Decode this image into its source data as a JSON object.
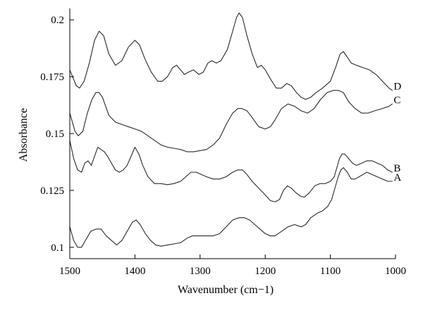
{
  "chart_data": {
    "type": "line",
    "title": "",
    "xlabel": "Wavenumber (cm−1)",
    "ylabel": "Absorbance",
    "xlim": [
      1500,
      1000
    ],
    "ylim": [
      0.095,
      0.205
    ],
    "x_reversed": true,
    "grid": false,
    "x_ticks": [
      1500,
      1400,
      1300,
      1200,
      1100,
      1000
    ],
    "x_tick_labels": [
      "1500",
      "1400",
      "1300",
      "1200",
      "1100",
      "1000"
    ],
    "y_ticks": [
      0.1,
      0.125,
      0.15,
      0.175,
      0.2
    ],
    "y_tick_labels": [
      "0.1",
      "0.125",
      "0.15",
      "0.175",
      "0.2"
    ],
    "line_color": "#2a2a2a",
    "series": [
      {
        "name": "D",
        "points": [
          [
            1500,
            0.178
          ],
          [
            1490,
            0.171
          ],
          [
            1485,
            0.17
          ],
          [
            1478,
            0.173
          ],
          [
            1470,
            0.181
          ],
          [
            1462,
            0.191
          ],
          [
            1455,
            0.195
          ],
          [
            1448,
            0.193
          ],
          [
            1440,
            0.185
          ],
          [
            1430,
            0.18
          ],
          [
            1420,
            0.182
          ],
          [
            1410,
            0.188
          ],
          [
            1400,
            0.191
          ],
          [
            1393,
            0.189
          ],
          [
            1385,
            0.183
          ],
          [
            1375,
            0.177
          ],
          [
            1365,
            0.173
          ],
          [
            1358,
            0.173
          ],
          [
            1350,
            0.175
          ],
          [
            1342,
            0.179
          ],
          [
            1336,
            0.18
          ],
          [
            1330,
            0.178
          ],
          [
            1324,
            0.176
          ],
          [
            1318,
            0.177
          ],
          [
            1310,
            0.178
          ],
          [
            1302,
            0.176
          ],
          [
            1295,
            0.177
          ],
          [
            1288,
            0.181
          ],
          [
            1282,
            0.182
          ],
          [
            1275,
            0.181
          ],
          [
            1268,
            0.182
          ],
          [
            1258,
            0.187
          ],
          [
            1250,
            0.195
          ],
          [
            1244,
            0.201
          ],
          [
            1240,
            0.203
          ],
          [
            1235,
            0.201
          ],
          [
            1228,
            0.193
          ],
          [
            1220,
            0.185
          ],
          [
            1212,
            0.179
          ],
          [
            1206,
            0.18
          ],
          [
            1200,
            0.178
          ],
          [
            1192,
            0.174
          ],
          [
            1183,
            0.17
          ],
          [
            1175,
            0.17
          ],
          [
            1167,
            0.172
          ],
          [
            1160,
            0.171
          ],
          [
            1152,
            0.168
          ],
          [
            1145,
            0.166
          ],
          [
            1138,
            0.165
          ],
          [
            1130,
            0.166
          ],
          [
            1122,
            0.168
          ],
          [
            1112,
            0.17
          ],
          [
            1100,
            0.173
          ],
          [
            1092,
            0.179
          ],
          [
            1085,
            0.185
          ],
          [
            1080,
            0.186
          ],
          [
            1075,
            0.184
          ],
          [
            1068,
            0.181
          ],
          [
            1060,
            0.18
          ],
          [
            1050,
            0.179
          ],
          [
            1040,
            0.178
          ],
          [
            1030,
            0.176
          ],
          [
            1020,
            0.173
          ],
          [
            1010,
            0.17
          ],
          [
            1005,
            0.169
          ]
        ]
      },
      {
        "name": "C",
        "points": [
          [
            1500,
            0.159
          ],
          [
            1492,
            0.151
          ],
          [
            1487,
            0.149
          ],
          [
            1480,
            0.151
          ],
          [
            1473,
            0.159
          ],
          [
            1466,
            0.165
          ],
          [
            1460,
            0.168
          ],
          [
            1455,
            0.168
          ],
          [
            1450,
            0.166
          ],
          [
            1440,
            0.158
          ],
          [
            1430,
            0.155
          ],
          [
            1420,
            0.154
          ],
          [
            1410,
            0.153
          ],
          [
            1400,
            0.152
          ],
          [
            1390,
            0.151
          ],
          [
            1380,
            0.149
          ],
          [
            1370,
            0.147
          ],
          [
            1360,
            0.145
          ],
          [
            1350,
            0.144
          ],
          [
            1340,
            0.1435
          ],
          [
            1330,
            0.143
          ],
          [
            1320,
            0.142
          ],
          [
            1310,
            0.142
          ],
          [
            1300,
            0.1425
          ],
          [
            1290,
            0.143
          ],
          [
            1280,
            0.145
          ],
          [
            1270,
            0.148
          ],
          [
            1260,
            0.154
          ],
          [
            1250,
            0.159
          ],
          [
            1242,
            0.161
          ],
          [
            1236,
            0.161
          ],
          [
            1228,
            0.16
          ],
          [
            1220,
            0.157
          ],
          [
            1210,
            0.153
          ],
          [
            1200,
            0.152
          ],
          [
            1192,
            0.153
          ],
          [
            1185,
            0.156
          ],
          [
            1175,
            0.161
          ],
          [
            1165,
            0.163
          ],
          [
            1155,
            0.162
          ],
          [
            1145,
            0.16
          ],
          [
            1135,
            0.159
          ],
          [
            1125,
            0.161
          ],
          [
            1115,
            0.165
          ],
          [
            1105,
            0.168
          ],
          [
            1095,
            0.169
          ],
          [
            1088,
            0.169
          ],
          [
            1080,
            0.168
          ],
          [
            1072,
            0.164
          ],
          [
            1062,
            0.161
          ],
          [
            1052,
            0.159
          ],
          [
            1042,
            0.159
          ],
          [
            1032,
            0.16
          ],
          [
            1020,
            0.161
          ],
          [
            1010,
            0.162
          ],
          [
            1005,
            0.163
          ]
        ]
      },
      {
        "name": "B",
        "points": [
          [
            1500,
            0.147
          ],
          [
            1494,
            0.139
          ],
          [
            1488,
            0.134
          ],
          [
            1482,
            0.133
          ],
          [
            1477,
            0.137
          ],
          [
            1472,
            0.138
          ],
          [
            1467,
            0.136
          ],
          [
            1462,
            0.14
          ],
          [
            1457,
            0.144
          ],
          [
            1452,
            0.143
          ],
          [
            1447,
            0.142
          ],
          [
            1442,
            0.14
          ],
          [
            1436,
            0.137
          ],
          [
            1430,
            0.134
          ],
          [
            1424,
            0.133
          ],
          [
            1418,
            0.134
          ],
          [
            1412,
            0.136
          ],
          [
            1406,
            0.14
          ],
          [
            1400,
            0.144
          ],
          [
            1394,
            0.141
          ],
          [
            1388,
            0.136
          ],
          [
            1380,
            0.131
          ],
          [
            1370,
            0.128
          ],
          [
            1360,
            0.128
          ],
          [
            1350,
            0.1275
          ],
          [
            1340,
            0.128
          ],
          [
            1330,
            0.129
          ],
          [
            1322,
            0.131
          ],
          [
            1314,
            0.133
          ],
          [
            1306,
            0.133
          ],
          [
            1298,
            0.132
          ],
          [
            1290,
            0.131
          ],
          [
            1280,
            0.13
          ],
          [
            1270,
            0.13
          ],
          [
            1260,
            0.131
          ],
          [
            1250,
            0.133
          ],
          [
            1242,
            0.134
          ],
          [
            1235,
            0.134
          ],
          [
            1228,
            0.132
          ],
          [
            1220,
            0.129
          ],
          [
            1210,
            0.126
          ],
          [
            1200,
            0.123
          ],
          [
            1192,
            0.1205
          ],
          [
            1185,
            0.12
          ],
          [
            1178,
            0.121
          ],
          [
            1172,
            0.125
          ],
          [
            1166,
            0.127
          ],
          [
            1160,
            0.126
          ],
          [
            1153,
            0.124
          ],
          [
            1146,
            0.1225
          ],
          [
            1140,
            0.122
          ],
          [
            1132,
            0.124
          ],
          [
            1124,
            0.127
          ],
          [
            1116,
            0.128
          ],
          [
            1108,
            0.128
          ],
          [
            1100,
            0.129
          ],
          [
            1094,
            0.131
          ],
          [
            1090,
            0.135
          ],
          [
            1086,
            0.139
          ],
          [
            1082,
            0.141
          ],
          [
            1078,
            0.141
          ],
          [
            1072,
            0.139
          ],
          [
            1066,
            0.137
          ],
          [
            1060,
            0.136
          ],
          [
            1052,
            0.137
          ],
          [
            1044,
            0.138
          ],
          [
            1036,
            0.138
          ],
          [
            1028,
            0.137
          ],
          [
            1020,
            0.136
          ],
          [
            1012,
            0.134
          ],
          [
            1005,
            0.133
          ]
        ]
      },
      {
        "name": "A",
        "points": [
          [
            1500,
            0.109
          ],
          [
            1494,
            0.103
          ],
          [
            1488,
            0.1
          ],
          [
            1482,
            0.1
          ],
          [
            1476,
            0.103
          ],
          [
            1468,
            0.107
          ],
          [
            1460,
            0.108
          ],
          [
            1452,
            0.108
          ],
          [
            1444,
            0.105
          ],
          [
            1436,
            0.103
          ],
          [
            1428,
            0.101
          ],
          [
            1420,
            0.103
          ],
          [
            1412,
            0.107
          ],
          [
            1404,
            0.111
          ],
          [
            1398,
            0.112
          ],
          [
            1392,
            0.11
          ],
          [
            1384,
            0.106
          ],
          [
            1376,
            0.103
          ],
          [
            1368,
            0.101
          ],
          [
            1360,
            0.1005
          ],
          [
            1350,
            0.101
          ],
          [
            1340,
            0.1015
          ],
          [
            1330,
            0.102
          ],
          [
            1320,
            0.104
          ],
          [
            1312,
            0.105
          ],
          [
            1300,
            0.105
          ],
          [
            1290,
            0.105
          ],
          [
            1280,
            0.105
          ],
          [
            1270,
            0.106
          ],
          [
            1260,
            0.109
          ],
          [
            1250,
            0.112
          ],
          [
            1240,
            0.113
          ],
          [
            1232,
            0.113
          ],
          [
            1224,
            0.112
          ],
          [
            1216,
            0.11
          ],
          [
            1208,
            0.108
          ],
          [
            1200,
            0.106
          ],
          [
            1192,
            0.105
          ],
          [
            1185,
            0.105
          ],
          [
            1175,
            0.107
          ],
          [
            1165,
            0.109
          ],
          [
            1155,
            0.11
          ],
          [
            1145,
            0.109
          ],
          [
            1138,
            0.11
          ],
          [
            1130,
            0.113
          ],
          [
            1120,
            0.115
          ],
          [
            1112,
            0.116
          ],
          [
            1104,
            0.118
          ],
          [
            1098,
            0.121
          ],
          [
            1092,
            0.127
          ],
          [
            1088,
            0.131
          ],
          [
            1084,
            0.134
          ],
          [
            1080,
            0.135
          ],
          [
            1074,
            0.133
          ],
          [
            1068,
            0.13
          ],
          [
            1062,
            0.13
          ],
          [
            1056,
            0.131
          ],
          [
            1050,
            0.132
          ],
          [
            1044,
            0.133
          ],
          [
            1036,
            0.132
          ],
          [
            1028,
            0.131
          ],
          [
            1020,
            0.13
          ],
          [
            1012,
            0.129
          ],
          [
            1005,
            0.129
          ]
        ]
      }
    ]
  }
}
